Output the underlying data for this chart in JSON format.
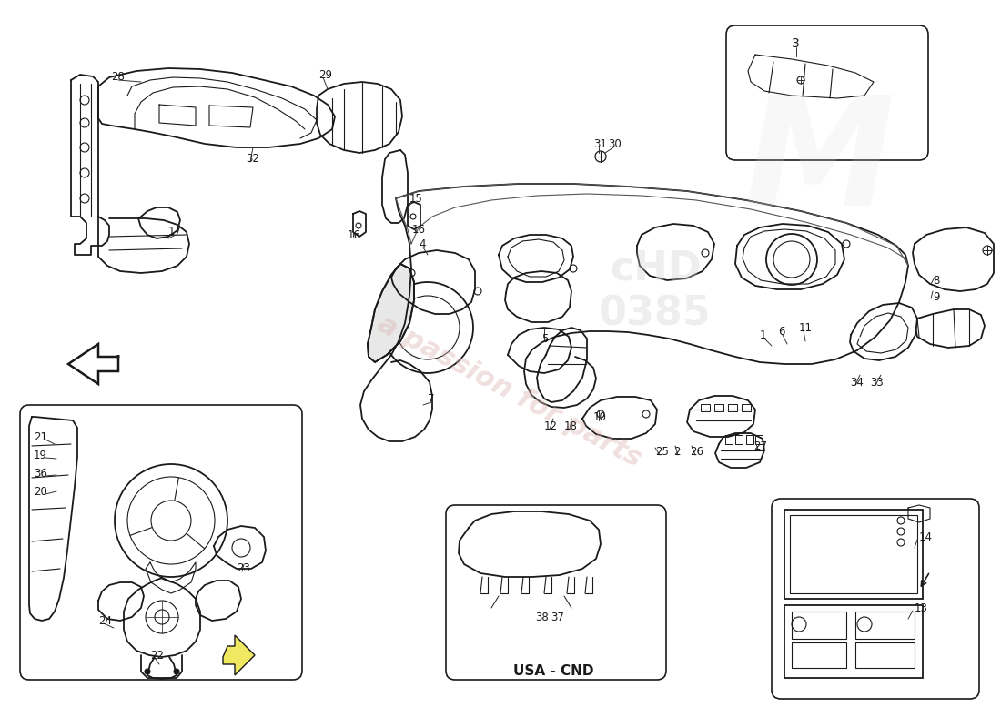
{
  "background_color": "#ffffff",
  "line_color": "#1a1a1a",
  "label_color": "#1a1a1a",
  "watermark_text": "a passion for parts",
  "watermark_color": "#e8b0b0",
  "watermark2": "cHD\n0385",
  "usa_cnd_label": "USA - CND",
  "lw_main": 1.3,
  "lw_thin": 0.8,
  "lw_thick": 1.8,
  "font_size": 8.5
}
